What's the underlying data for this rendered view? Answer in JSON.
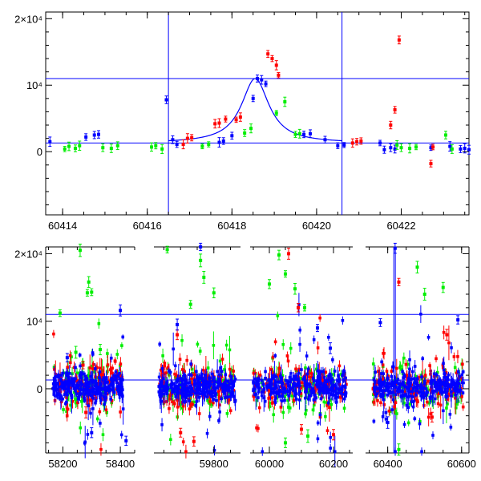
{
  "colors": {
    "blue": "#0000ff",
    "red": "#ff0000",
    "green": "#00ee00",
    "axis": "#000000",
    "line": "#0000ff"
  },
  "chart_data": [
    {
      "type": "scatter",
      "panel": "top",
      "xlim": [
        60413.6,
        60423.6
      ],
      "ylim": [
        -9500,
        21000
      ],
      "xticks": [
        {
          "v": 60414,
          "label": "60414"
        },
        {
          "v": 60416,
          "label": "60416"
        },
        {
          "v": 60418,
          "label": "60418"
        },
        {
          "v": 60420,
          "label": "60420"
        },
        {
          "v": 60422,
          "label": "60422"
        }
      ],
      "yticks": [
        {
          "v": 0,
          "label": "0"
        },
        {
          "v": 10000,
          "label": "10⁴"
        },
        {
          "v": 20000,
          "label": "2×10⁴"
        }
      ],
      "hlines": [
        1300,
        11000
      ],
      "vlines": [
        60416.5,
        60420.6
      ],
      "model_curve": {
        "baseline": 1300,
        "peak_x": 60418.55,
        "peak_y": 11000,
        "width_days": 0.5
      },
      "series": [
        {
          "color": "blue",
          "points": [
            [
              60413.7,
              1500
            ],
            [
              60414.75,
              2500
            ],
            [
              60414.85,
              2600
            ],
            [
              60414.55,
              2200
            ],
            [
              60416.45,
              7800
            ],
            [
              60416.6,
              1800
            ],
            [
              60416.7,
              1100
            ],
            [
              60417.7,
              1400
            ],
            [
              60417.8,
              1600
            ],
            [
              60418.0,
              2400
            ],
            [
              60418.5,
              8000
            ],
            [
              60418.6,
              11000
            ],
            [
              60418.7,
              10800
            ],
            [
              60418.8,
              10200
            ],
            [
              60419.7,
              2600
            ],
            [
              60419.85,
              2700
            ],
            [
              60420.2,
              1800
            ],
            [
              60420.5,
              900
            ],
            [
              60420.65,
              1000
            ],
            [
              60421.5,
              1300
            ],
            [
              60421.6,
              300
            ],
            [
              60421.75,
              600
            ],
            [
              60421.85,
              400
            ],
            [
              60422.7,
              600
            ],
            [
              60423.15,
              800
            ],
            [
              60423.4,
              400
            ],
            [
              60423.5,
              500
            ],
            [
              60423.6,
              300
            ]
          ]
        },
        {
          "color": "red",
          "points": [
            [
              60416.85,
              1100
            ],
            [
              60416.95,
              2000
            ],
            [
              60417.05,
              2100
            ],
            [
              60417.6,
              4200
            ],
            [
              60417.7,
              4300
            ],
            [
              60417.85,
              4900
            ],
            [
              60418.1,
              4800
            ],
            [
              60418.2,
              5200
            ],
            [
              60418.85,
              14700
            ],
            [
              60418.95,
              14000
            ],
            [
              60419.05,
              13000
            ],
            [
              60419.1,
              11500
            ],
            [
              60420.85,
              1300
            ],
            [
              60420.95,
              1500
            ],
            [
              60421.05,
              1600
            ],
            [
              60421.75,
              4000
            ],
            [
              60421.85,
              6300
            ],
            [
              60421.95,
              16800
            ],
            [
              60422.7,
              -1800
            ],
            [
              60422.75,
              700
            ]
          ]
        },
        {
          "color": "green",
          "points": [
            [
              60414.05,
              400
            ],
            [
              60414.15,
              800
            ],
            [
              60414.3,
              500
            ],
            [
              60414.4,
              900
            ],
            [
              60414.95,
              600
            ],
            [
              60415.15,
              500
            ],
            [
              60415.3,
              900
            ],
            [
              60416.1,
              700
            ],
            [
              60416.2,
              900
            ],
            [
              60416.35,
              400
            ],
            [
              60417.3,
              800
            ],
            [
              60417.45,
              1100
            ],
            [
              60418.3,
              2800
            ],
            [
              60418.45,
              3500
            ],
            [
              60419.05,
              5800
            ],
            [
              60419.25,
              7500
            ],
            [
              60419.5,
              2600
            ],
            [
              60419.6,
              2700
            ],
            [
              60421.9,
              1000
            ],
            [
              60422.0,
              600
            ],
            [
              60422.2,
              500
            ],
            [
              60422.35,
              700
            ],
            [
              60423.05,
              2500
            ],
            [
              60423.2,
              400
            ]
          ]
        }
      ]
    },
    {
      "type": "scatter",
      "panel": "bottom",
      "broken_axis": true,
      "segments": [
        {
          "xlim": [
            58140,
            58450
          ]
        },
        {
          "xlim": [
            59620,
            59880
          ]
        },
        {
          "xlim": [
            59940,
            60260
          ]
        },
        {
          "xlim": [
            60340,
            60620
          ]
        }
      ],
      "ylim": [
        -9500,
        21000
      ],
      "xticks": [
        {
          "v": 58200,
          "label": "58200"
        },
        {
          "v": 58400,
          "label": "58400"
        },
        {
          "v": 59800,
          "label": "59800"
        },
        {
          "v": 60000,
          "label": "60000"
        },
        {
          "v": 60200,
          "label": "60200"
        },
        {
          "v": 60400,
          "label": "60400"
        },
        {
          "v": 60600,
          "label": "60600"
        }
      ],
      "yticks": [
        {
          "v": 0,
          "label": "0"
        },
        {
          "v": 10000,
          "label": "10⁴"
        },
        {
          "v": 20000,
          "label": "2×10⁴"
        }
      ],
      "hlines": [
        1300,
        11000
      ],
      "vlines": [
        60416.5,
        60420.6
      ],
      "season_ranges": [
        [
          58165,
          58410
        ],
        [
          59635,
          59865
        ],
        [
          59950,
          60240
        ],
        [
          60360,
          60605
        ]
      ],
      "outliers": [
        {
          "color": "green",
          "points": [
            [
              58260,
              20500
            ],
            [
              58290,
              15800
            ],
            [
              58285,
              14200
            ],
            [
              58300,
              14300
            ],
            [
              58190,
              11200
            ],
            [
              58245,
              5400
            ],
            [
              58330,
              5800
            ],
            [
              59660,
              20600
            ],
            [
              59730,
              12500
            ],
            [
              59770,
              16500
            ],
            [
              59800,
              14200
            ],
            [
              59760,
              19000
            ],
            [
              60000,
              15500
            ],
            [
              60030,
              19800
            ],
            [
              60050,
              17000
            ],
            [
              60080,
              14800
            ],
            [
              60110,
              12000
            ],
            [
              60480,
              18000
            ],
            [
              60500,
              14000
            ],
            [
              60550,
              15000
            ],
            [
              60120,
              -7000
            ],
            [
              60050,
              -8000
            ],
            [
              60430,
              -9000
            ]
          ]
        },
        {
          "color": "red",
          "points": [
            [
              58270,
              3500
            ],
            [
              58280,
              -3500
            ],
            [
              59700,
              -6500
            ],
            [
              59740,
              -7800
            ],
            [
              59690,
              8000
            ],
            [
              60060,
              20000
            ],
            [
              60090,
              12000
            ],
            [
              60100,
              -6000
            ],
            [
              60200,
              -6800
            ],
            [
              60430,
              15800
            ],
            [
              60520,
              -4200
            ],
            [
              60560,
              8000
            ]
          ]
        },
        {
          "color": "blue",
          "points": [
            [
              58215,
              4600
            ],
            [
              58400,
              11600
            ],
            [
              58420,
              -7700
            ],
            [
              58300,
              -6500
            ],
            [
              59690,
              9500
            ],
            [
              59760,
              21000
            ],
            [
              60150,
              9000
            ],
            [
              60190,
              6000
            ],
            [
              60380,
              9800
            ],
            [
              60420,
              20800
            ],
            [
              60590,
              10200
            ],
            [
              60400,
              -5000
            ]
          ]
        }
      ]
    }
  ]
}
